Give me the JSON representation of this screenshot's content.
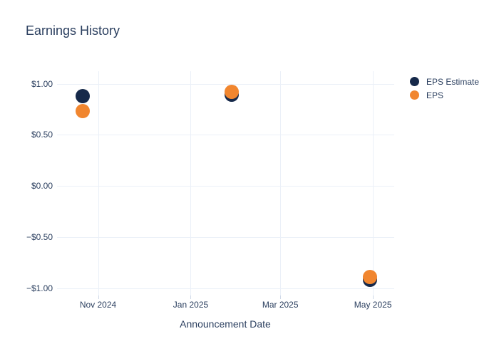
{
  "chart_data": {
    "type": "scatter",
    "title": "Earnings History",
    "xlabel": "Announcement Date",
    "ylabel": "",
    "grid": true,
    "legend_position": "right-top",
    "text_color": "#2b3f5f",
    "grid_color": "#ebf0f8",
    "tick_color": "#cfd9e8",
    "x_range": [
      "2024-10-05",
      "2025-05-15"
    ],
    "y_range": [
      -1.073,
      1.123
    ],
    "x_ticks": [
      {
        "date": "2024-11-01",
        "label": "Nov 2024"
      },
      {
        "date": "2025-01-01",
        "label": "Jan 2025"
      },
      {
        "date": "2025-03-01",
        "label": "Mar 2025"
      },
      {
        "date": "2025-05-01",
        "label": "May 2025"
      }
    ],
    "y_ticks": [
      {
        "value": 1.0,
        "label": "$1.00"
      },
      {
        "value": 0.5,
        "label": "$0.50"
      },
      {
        "value": 0.0,
        "label": "$0.00"
      },
      {
        "value": -0.5,
        "label": "−$0.50"
      },
      {
        "value": -1.0,
        "label": "−$1.00"
      }
    ],
    "series": [
      {
        "key": "estimate",
        "name": "EPS Estimate",
        "color": "#16294a"
      },
      {
        "key": "eps",
        "name": "EPS",
        "color": "#f1862f"
      }
    ],
    "points": [
      {
        "date": "2024-10-22",
        "estimate": 0.88,
        "eps": 0.73
      },
      {
        "date": "2025-01-28",
        "estimate": 0.89,
        "eps": 0.92
      },
      {
        "date": "2025-04-29",
        "estimate": -0.92,
        "eps": -0.89
      }
    ],
    "marker_size_px": 20
  }
}
